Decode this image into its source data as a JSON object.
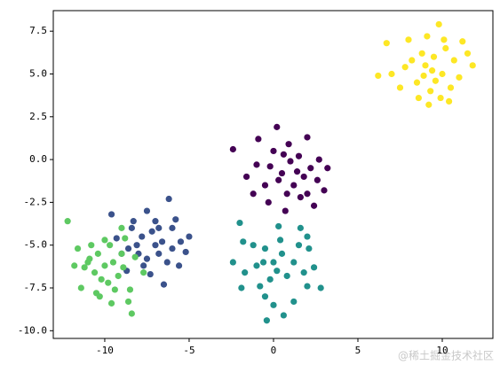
{
  "chart_data": {
    "type": "scatter",
    "xlim": [
      -13.05,
      13.0
    ],
    "ylim": [
      -10.45,
      8.7
    ],
    "xticks": [
      -10,
      -5,
      0,
      5,
      10
    ],
    "yticks": [
      {
        "value": -10,
        "label": "-10.0"
      },
      -7.5,
      {
        "value": -5,
        "label": "-5.0"
      },
      -2.5,
      {
        "value": 0,
        "label": "0.0"
      },
      2.5,
      {
        "value": 5,
        "label": "5.0"
      },
      7.5
    ],
    "series": [
      {
        "color": "#fde725",
        "x": [
          6.2,
          7.0,
          6.7,
          9.8,
          11.8,
          9.2,
          11.2,
          8.0,
          10.5,
          9.0,
          9.5,
          10.0,
          8.5,
          9.3,
          10.2,
          8.8,
          9.9,
          11.0,
          8.2,
          9.6,
          10.7,
          7.5,
          9.1,
          10.4,
          8.6,
          11.5,
          7.8,
          9.4,
          10.1,
          8.9
        ],
        "y": [
          4.9,
          5.0,
          6.8,
          7.9,
          5.5,
          3.2,
          6.9,
          7.0,
          4.2,
          5.5,
          6.0,
          5.0,
          4.5,
          4.0,
          6.5,
          6.2,
          3.6,
          4.8,
          5.8,
          4.6,
          5.8,
          4.2,
          7.2,
          3.4,
          3.6,
          6.2,
          5.4,
          5.2,
          7.0,
          4.9
        ]
      },
      {
        "color": "#440154",
        "x": [
          -2.4,
          -0.9,
          0.2,
          2.0,
          2.7,
          3.2,
          3.0,
          2.4,
          0.7,
          -0.3,
          -1.6,
          -1.0,
          0.5,
          1.2,
          1.5,
          0.0,
          1.8,
          0.8,
          -0.5,
          2.2,
          1.0,
          0.3,
          1.6,
          -1.2,
          2.6,
          0.9,
          -0.2,
          1.4,
          0.6,
          2.0
        ],
        "y": [
          0.6,
          1.2,
          1.9,
          1.3,
          0.0,
          -0.5,
          -1.8,
          -2.7,
          -3.0,
          -2.5,
          -1.0,
          -0.3,
          -0.8,
          -1.5,
          0.2,
          0.5,
          -1.0,
          -2.0,
          -1.5,
          -0.5,
          -0.1,
          -1.2,
          -2.2,
          -2.0,
          -1.2,
          0.9,
          -0.4,
          -0.7,
          0.3,
          -2.0
        ]
      },
      {
        "color": "#3b528b",
        "x": [
          -6.2,
          -8.3,
          -9.6,
          -7.5,
          -5.8,
          -5.0,
          -5.2,
          -6.5,
          -7.3,
          -8.7,
          -8.6,
          -9.3,
          -7.0,
          -6.8,
          -7.8,
          -6.0,
          -7.5,
          -8.0,
          -6.3,
          -5.6,
          -7.2,
          -8.4,
          -6.6,
          -7.7,
          -6.0,
          -8.1,
          -7.0,
          -5.5,
          -6.8,
          -9.0
        ],
        "y": [
          -2.3,
          -3.6,
          -3.2,
          -3.0,
          -3.5,
          -4.5,
          -5.4,
          -7.3,
          -6.7,
          -6.5,
          -5.2,
          -4.6,
          -5.0,
          -4.0,
          -4.5,
          -5.2,
          -5.8,
          -5.5,
          -6.0,
          -6.2,
          -4.2,
          -4.0,
          -4.8,
          -6.2,
          -4.0,
          -5.0,
          -3.6,
          -4.8,
          -5.5,
          -5.5
        ]
      },
      {
        "color": "#21918c",
        "x": [
          -2.0,
          -1.8,
          -2.4,
          -1.7,
          -1.9,
          -0.5,
          -0.4,
          0.6,
          1.2,
          2.0,
          2.4,
          2.1,
          2.0,
          1.6,
          0.3,
          0.0,
          0.5,
          -0.5,
          -1.0,
          0.8,
          1.2,
          -0.2,
          0.4,
          1.5,
          -1.2,
          0.0,
          -0.8,
          1.8,
          0.2,
          -0.6,
          2.8
        ],
        "y": [
          -3.7,
          -4.8,
          -6.0,
          -6.6,
          -7.5,
          -8.0,
          -9.4,
          -9.1,
          -8.3,
          -7.4,
          -6.3,
          -5.2,
          -4.5,
          -4.0,
          -3.9,
          -6.0,
          -5.5,
          -5.2,
          -6.2,
          -6.8,
          -6.0,
          -7.0,
          -4.7,
          -5.0,
          -5.0,
          -8.5,
          -7.4,
          -6.6,
          -6.5,
          -6.0,
          -7.5
        ]
      },
      {
        "color": "#5ec962",
        "x": [
          -12.2,
          -11.6,
          -11.2,
          -11.4,
          -10.5,
          -9.6,
          -8.6,
          -8.4,
          -8.5,
          -7.7,
          -8.2,
          -8.8,
          -9.0,
          -10.0,
          -10.4,
          -10.0,
          -9.5,
          -10.6,
          -9.2,
          -9.8,
          -10.9,
          -9.0,
          -10.2,
          -11.0,
          -9.4,
          -11.8,
          -10.8,
          -9.7,
          -8.9,
          -10.3
        ],
        "y": [
          -3.6,
          -5.2,
          -6.3,
          -7.5,
          -7.8,
          -8.4,
          -8.3,
          -9.0,
          -7.6,
          -6.6,
          -5.7,
          -4.6,
          -4.0,
          -4.7,
          -5.5,
          -6.2,
          -6.0,
          -6.6,
          -6.8,
          -7.2,
          -5.8,
          -5.5,
          -7.0,
          -6.0,
          -7.6,
          -6.2,
          -5.0,
          -5.0,
          -6.3,
          -8.0
        ]
      }
    ]
  },
  "watermark": "@稀土掘金技术社区"
}
